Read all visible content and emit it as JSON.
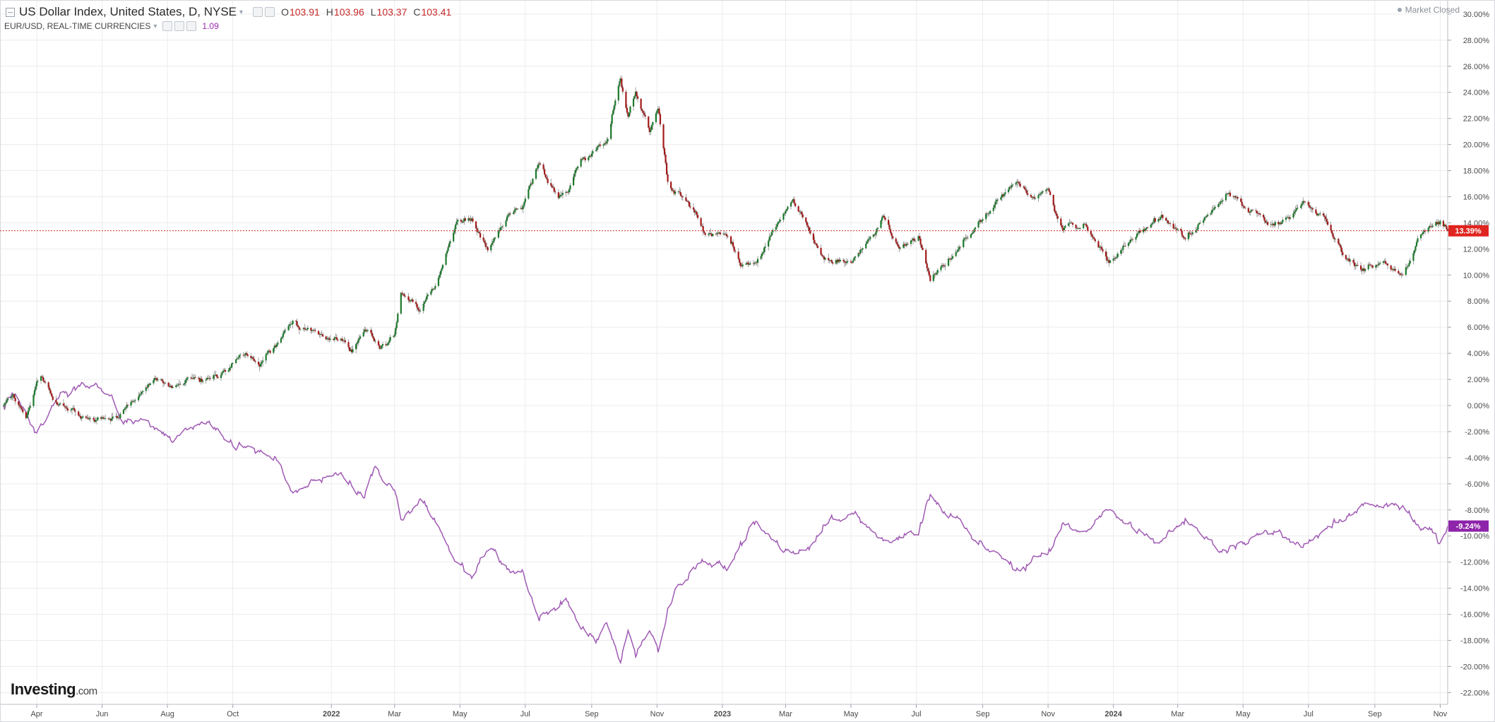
{
  "header": {
    "title": "US Dollar Index, United States, D, NYSE",
    "ohlc": [
      {
        "label": "O",
        "value": "103.91"
      },
      {
        "label": "H",
        "value": "103.96"
      },
      {
        "label": "L",
        "value": "103.37"
      },
      {
        "label": "C",
        "value": "103.41"
      }
    ],
    "compare_title": "EUR/USD, REAL-TIME CURRENCIES",
    "compare_value": "1.09",
    "market_status": "Market Closed"
  },
  "logo": {
    "brand": "Investing",
    "suffix": ".com"
  },
  "colors": {
    "up": "#1b7a2b",
    "down": "#a31a1a",
    "comparison": "#a05ab4",
    "price_line": "#d32f2f",
    "comparison_badge": "#8e24aa",
    "grid": "#ececec"
  },
  "chart_data": {
    "type": "line",
    "percent_scale": true,
    "x_range": [
      "2021-03-01",
      "2024-11-08"
    ],
    "ylim": [
      -23,
      30.5
    ],
    "y_ticks": [
      "30.00%",
      "28.00%",
      "26.00%",
      "24.00%",
      "22.00%",
      "20.00%",
      "18.00%",
      "16.00%",
      "14.00%",
      "12.00%",
      "10.00%",
      "8.00%",
      "6.00%",
      "4.00%",
      "2.00%",
      "0.00%",
      "-2.00%",
      "-4.00%",
      "-6.00%",
      "-8.00%",
      "-10.00%",
      "-12.00%",
      "-14.00%",
      "-16.00%",
      "-18.00%",
      "-20.00%",
      "-22.00%"
    ],
    "x_ticks": [
      {
        "label": "Apr",
        "date": "2021-04-01",
        "bold": false
      },
      {
        "label": "Jun",
        "date": "2021-06-01",
        "bold": false
      },
      {
        "label": "Aug",
        "date": "2021-08-01",
        "bold": false
      },
      {
        "label": "Oct",
        "date": "2021-10-01",
        "bold": false
      },
      {
        "label": "2022",
        "date": "2022-01-01",
        "bold": true
      },
      {
        "label": "Mar",
        "date": "2022-03-01",
        "bold": false
      },
      {
        "label": "May",
        "date": "2022-05-01",
        "bold": false
      },
      {
        "label": "Jul",
        "date": "2022-07-01",
        "bold": false
      },
      {
        "label": "Sep",
        "date": "2022-09-01",
        "bold": false
      },
      {
        "label": "Nov",
        "date": "2022-11-01",
        "bold": false
      },
      {
        "label": "2023",
        "date": "2023-01-01",
        "bold": true
      },
      {
        "label": "Mar",
        "date": "2023-03-01",
        "bold": false
      },
      {
        "label": "May",
        "date": "2023-05-01",
        "bold": false
      },
      {
        "label": "Jul",
        "date": "2023-07-01",
        "bold": false
      },
      {
        "label": "Sep",
        "date": "2023-09-01",
        "bold": false
      },
      {
        "label": "Nov",
        "date": "2023-11-01",
        "bold": false
      },
      {
        "label": "2024",
        "date": "2024-01-01",
        "bold": true
      },
      {
        "label": "Mar",
        "date": "2024-03-01",
        "bold": false
      },
      {
        "label": "May",
        "date": "2024-05-01",
        "bold": false
      },
      {
        "label": "Jul",
        "date": "2024-07-01",
        "bold": false
      },
      {
        "label": "Sep",
        "date": "2024-09-01",
        "bold": false
      },
      {
        "label": "Nov",
        "date": "2024-11-01",
        "bold": false
      }
    ],
    "series": [
      {
        "name": "US Dollar Index",
        "style": "candlestick",
        "points": [
          [
            "2021-03-01",
            0
          ],
          [
            "2021-03-10",
            0.5
          ],
          [
            "2021-03-22",
            -0.8
          ],
          [
            "2021-03-31",
            1.5
          ],
          [
            "2021-04-05",
            2.0
          ],
          [
            "2021-04-20",
            0.3
          ],
          [
            "2021-05-05",
            -0.5
          ],
          [
            "2021-05-25",
            -1.3
          ],
          [
            "2021-06-10",
            -1.0
          ],
          [
            "2021-06-20",
            -0.5
          ],
          [
            "2021-07-05",
            1.0
          ],
          [
            "2021-07-20",
            1.8
          ],
          [
            "2021-08-05",
            1.2
          ],
          [
            "2021-08-20",
            2.3
          ],
          [
            "2021-09-05",
            1.5
          ],
          [
            "2021-09-25",
            2.8
          ],
          [
            "2021-10-10",
            3.8
          ],
          [
            "2021-10-25",
            3.0
          ],
          [
            "2021-11-10",
            4.5
          ],
          [
            "2021-11-24",
            6.3
          ],
          [
            "2021-12-15",
            5.5
          ],
          [
            "2022-01-10",
            5.2
          ],
          [
            "2022-01-20",
            4.2
          ],
          [
            "2022-02-01",
            5.8
          ],
          [
            "2022-02-15",
            4.6
          ],
          [
            "2022-03-01",
            5.3
          ],
          [
            "2022-03-07",
            8.5
          ],
          [
            "2022-03-25",
            7.5
          ],
          [
            "2022-04-10",
            9.5
          ],
          [
            "2022-04-28",
            14.0
          ],
          [
            "2022-05-12",
            14.5
          ],
          [
            "2022-05-27",
            12.0
          ],
          [
            "2022-06-15",
            14.5
          ],
          [
            "2022-06-28",
            15.0
          ],
          [
            "2022-07-14",
            18.5
          ],
          [
            "2022-08-01",
            16.0
          ],
          [
            "2022-08-10",
            16.3
          ],
          [
            "2022-08-22",
            19.0
          ],
          [
            "2022-09-15",
            20.0
          ],
          [
            "2022-09-28",
            25.0
          ],
          [
            "2022-10-05",
            22.0
          ],
          [
            "2022-10-12",
            24.0
          ],
          [
            "2022-10-25",
            21.0
          ],
          [
            "2022-11-02",
            23.0
          ],
          [
            "2022-11-11",
            17.0
          ],
          [
            "2022-11-25",
            15.8
          ],
          [
            "2022-12-15",
            13.5
          ],
          [
            "2023-01-05",
            13.0
          ],
          [
            "2023-01-20",
            11.0
          ],
          [
            "2023-02-02",
            11.5
          ],
          [
            "2023-02-15",
            13.0
          ],
          [
            "2023-03-08",
            15.5
          ],
          [
            "2023-03-28",
            12.0
          ],
          [
            "2023-04-14",
            10.8
          ],
          [
            "2023-05-05",
            11.5
          ],
          [
            "2023-05-31",
            14.3
          ],
          [
            "2023-06-15",
            12.0
          ],
          [
            "2023-07-03",
            13.0
          ],
          [
            "2023-07-14",
            9.5
          ],
          [
            "2023-08-01",
            11.5
          ],
          [
            "2023-08-25",
            13.5
          ],
          [
            "2023-09-10",
            15.5
          ],
          [
            "2023-10-01",
            17.2
          ],
          [
            "2023-10-15",
            16.0
          ],
          [
            "2023-11-01",
            16.5
          ],
          [
            "2023-11-15",
            13.5
          ],
          [
            "2023-12-05",
            13.8
          ],
          [
            "2023-12-28",
            11.0
          ],
          [
            "2024-01-15",
            12.5
          ],
          [
            "2024-02-14",
            14.3
          ],
          [
            "2024-03-08",
            12.8
          ],
          [
            "2024-04-16",
            16.2
          ],
          [
            "2024-05-15",
            14.5
          ],
          [
            "2024-06-05",
            13.8
          ],
          [
            "2024-06-26",
            15.5
          ],
          [
            "2024-07-15",
            14.3
          ],
          [
            "2024-08-05",
            11.5
          ],
          [
            "2024-08-23",
            10.5
          ],
          [
            "2024-09-10",
            11.3
          ],
          [
            "2024-09-27",
            10.0
          ],
          [
            "2024-10-10",
            12.5
          ],
          [
            "2024-11-01",
            14.5
          ],
          [
            "2024-11-08",
            13.39
          ]
        ],
        "last_label": "13.39%"
      },
      {
        "name": "EUR/USD",
        "style": "line",
        "points": [
          [
            "2021-03-01",
            0
          ],
          [
            "2021-03-10",
            0.8
          ],
          [
            "2021-03-22",
            -0.5
          ],
          [
            "2021-03-31",
            -2.2
          ],
          [
            "2021-04-20",
            0.3
          ],
          [
            "2021-05-10",
            1.5
          ],
          [
            "2021-05-25",
            1.2
          ],
          [
            "2021-06-10",
            0.8
          ],
          [
            "2021-06-20",
            -1.5
          ],
          [
            "2021-07-05",
            -1.0
          ],
          [
            "2021-07-20",
            -1.8
          ],
          [
            "2021-08-05",
            -2.5
          ],
          [
            "2021-08-20",
            -2.0
          ],
          [
            "2021-09-05",
            -1.3
          ],
          [
            "2021-09-25",
            -2.8
          ],
          [
            "2021-10-10",
            -3.2
          ],
          [
            "2021-10-25",
            -3.6
          ],
          [
            "2021-11-10",
            -4.0
          ],
          [
            "2021-11-24",
            -6.5
          ],
          [
            "2021-12-15",
            -5.8
          ],
          [
            "2022-01-10",
            -5.2
          ],
          [
            "2022-01-20",
            -6.0
          ],
          [
            "2022-02-01",
            -7.0
          ],
          [
            "2022-02-10",
            -5.0
          ],
          [
            "2022-03-01",
            -6.5
          ],
          [
            "2022-03-07",
            -9.0
          ],
          [
            "2022-03-25",
            -7.5
          ],
          [
            "2022-04-10",
            -9.0
          ],
          [
            "2022-04-28",
            -12.0
          ],
          [
            "2022-05-12",
            -13.0
          ],
          [
            "2022-05-30",
            -11.0
          ],
          [
            "2022-06-15",
            -13.0
          ],
          [
            "2022-06-28",
            -12.5
          ],
          [
            "2022-07-14",
            -16.5
          ],
          [
            "2022-08-10",
            -15.0
          ],
          [
            "2022-08-22",
            -16.5
          ],
          [
            "2022-09-05",
            -18.0
          ],
          [
            "2022-09-15",
            -17.0
          ],
          [
            "2022-09-28",
            -20.0
          ],
          [
            "2022-10-05",
            -17.5
          ],
          [
            "2022-10-12",
            -19.0
          ],
          [
            "2022-10-25",
            -17.0
          ],
          [
            "2022-11-02",
            -19.0
          ],
          [
            "2022-11-11",
            -15.0
          ],
          [
            "2022-11-25",
            -13.5
          ],
          [
            "2022-12-15",
            -12.0
          ],
          [
            "2023-01-05",
            -12.5
          ],
          [
            "2023-01-20",
            -10.5
          ],
          [
            "2023-02-02",
            -9.0
          ],
          [
            "2023-02-15",
            -10.5
          ],
          [
            "2023-03-08",
            -11.5
          ],
          [
            "2023-03-28",
            -10.0
          ],
          [
            "2023-04-14",
            -9.0
          ],
          [
            "2023-05-05",
            -8.5
          ],
          [
            "2023-05-31",
            -10.5
          ],
          [
            "2023-06-15",
            -10.0
          ],
          [
            "2023-07-03",
            -10.0
          ],
          [
            "2023-07-14",
            -6.8
          ],
          [
            "2023-08-01",
            -8.5
          ],
          [
            "2023-08-25",
            -10.0
          ],
          [
            "2023-09-10",
            -11.0
          ],
          [
            "2023-10-01",
            -12.5
          ],
          [
            "2023-10-15",
            -12.0
          ],
          [
            "2023-11-01",
            -11.0
          ],
          [
            "2023-11-15",
            -9.0
          ],
          [
            "2023-12-05",
            -9.5
          ],
          [
            "2023-12-28",
            -7.8
          ],
          [
            "2024-01-15",
            -9.0
          ],
          [
            "2024-02-14",
            -10.2
          ],
          [
            "2024-03-08",
            -9.0
          ],
          [
            "2024-04-16",
            -11.5
          ],
          [
            "2024-05-15",
            -10.0
          ],
          [
            "2024-06-05",
            -9.8
          ],
          [
            "2024-06-26",
            -11.0
          ],
          [
            "2024-07-15",
            -10.0
          ],
          [
            "2024-08-05",
            -8.5
          ],
          [
            "2024-08-23",
            -7.5
          ],
          [
            "2024-09-10",
            -8.0
          ],
          [
            "2024-09-27",
            -7.2
          ],
          [
            "2024-10-10",
            -9.0
          ],
          [
            "2024-11-01",
            -10.5
          ],
          [
            "2024-11-08",
            -9.24
          ]
        ],
        "last_label": "-9.24%"
      }
    ]
  }
}
